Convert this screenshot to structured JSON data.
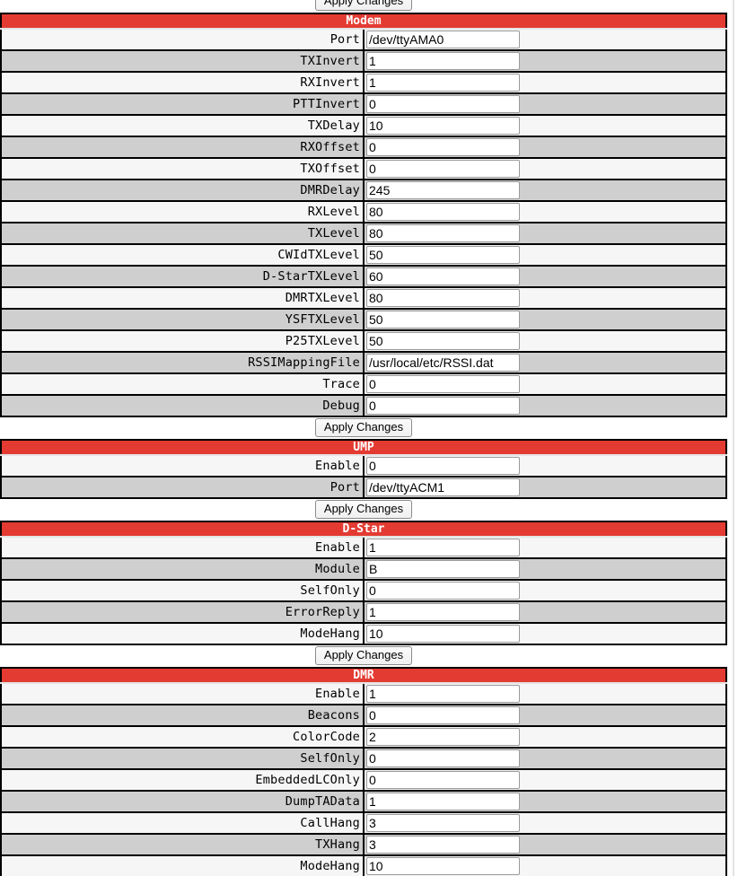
{
  "page": {
    "apply_button_label": "Apply Changes"
  },
  "colors": {
    "section_header_red": "#e33b32",
    "row_gray": "#cfcfcf",
    "row_white": "#f6f6f6"
  },
  "sections": [
    {
      "title": "Modem",
      "fields": [
        {
          "label": "Port",
          "value": "/dev/ttyAMA0"
        },
        {
          "label": "TXInvert",
          "value": "1"
        },
        {
          "label": "RXInvert",
          "value": "1"
        },
        {
          "label": "PTTInvert",
          "value": "0"
        },
        {
          "label": "TXDelay",
          "value": "10"
        },
        {
          "label": "RXOffset",
          "value": "0"
        },
        {
          "label": "TXOffset",
          "value": "0"
        },
        {
          "label": "DMRDelay",
          "value": "245"
        },
        {
          "label": "RXLevel",
          "value": "80"
        },
        {
          "label": "TXLevel",
          "value": "80"
        },
        {
          "label": "CWIdTXLevel",
          "value": "50"
        },
        {
          "label": "D-StarTXLevel",
          "value": "60"
        },
        {
          "label": "DMRTXLevel",
          "value": "80"
        },
        {
          "label": "YSFTXLevel",
          "value": "50"
        },
        {
          "label": "P25TXLevel",
          "value": "50"
        },
        {
          "label": "RSSIMappingFile",
          "value": "/usr/local/etc/RSSI.dat"
        },
        {
          "label": "Trace",
          "value": "0"
        },
        {
          "label": "Debug",
          "value": "0"
        }
      ]
    },
    {
      "title": "UMP",
      "fields": [
        {
          "label": "Enable",
          "value": "0"
        },
        {
          "label": "Port",
          "value": "/dev/ttyACM1"
        }
      ]
    },
    {
      "title": "D-Star",
      "fields": [
        {
          "label": "Enable",
          "value": "1"
        },
        {
          "label": "Module",
          "value": "B"
        },
        {
          "label": "SelfOnly",
          "value": "0"
        },
        {
          "label": "ErrorReply",
          "value": "1"
        },
        {
          "label": "ModeHang",
          "value": "10"
        }
      ]
    },
    {
      "title": "DMR",
      "fields": [
        {
          "label": "Enable",
          "value": "1"
        },
        {
          "label": "Beacons",
          "value": "0"
        },
        {
          "label": "ColorCode",
          "value": "2"
        },
        {
          "label": "SelfOnly",
          "value": "0"
        },
        {
          "label": "EmbeddedLCOnly",
          "value": "0"
        },
        {
          "label": "DumpTAData",
          "value": "1"
        },
        {
          "label": "CallHang",
          "value": "3"
        },
        {
          "label": "TXHang",
          "value": "3"
        },
        {
          "label": "ModeHang",
          "value": "10"
        }
      ]
    }
  ]
}
